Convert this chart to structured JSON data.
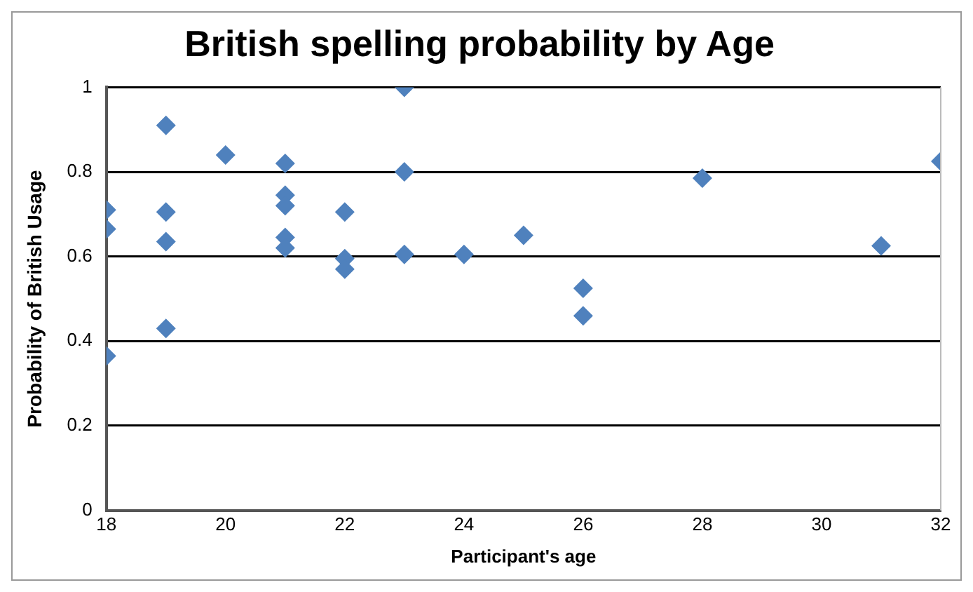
{
  "chart_data": {
    "type": "scatter",
    "title": "British spelling probability by Age",
    "xlabel": "Participant's age",
    "ylabel": "Probability of British Usage",
    "series": [
      {
        "color": "#4f81bd",
        "x": [
          18,
          18,
          18,
          19,
          19,
          19,
          19,
          20,
          21,
          21,
          21,
          21,
          21,
          22,
          22,
          22,
          23,
          23,
          23,
          24,
          25,
          26,
          26,
          28,
          31,
          32
        ],
        "values": [
          0.71,
          0.665,
          0.365,
          0.91,
          0.705,
          0.635,
          0.43,
          0.84,
          0.82,
          0.745,
          0.72,
          0.645,
          0.62,
          0.705,
          0.595,
          0.57,
          1.0,
          0.8,
          0.605,
          0.605,
          0.65,
          0.525,
          0.46,
          0.785,
          0.625,
          0.825
        ]
      }
    ],
    "xlim": [
      18,
      32
    ],
    "xticks": [
      18,
      20,
      22,
      24,
      26,
      28,
      30,
      32
    ],
    "ylim": [
      0,
      1
    ],
    "yticks": [
      0,
      0.2,
      0.4,
      0.6,
      0.8,
      1
    ],
    "grid": "y",
    "legend": false,
    "marker": "diamond"
  }
}
